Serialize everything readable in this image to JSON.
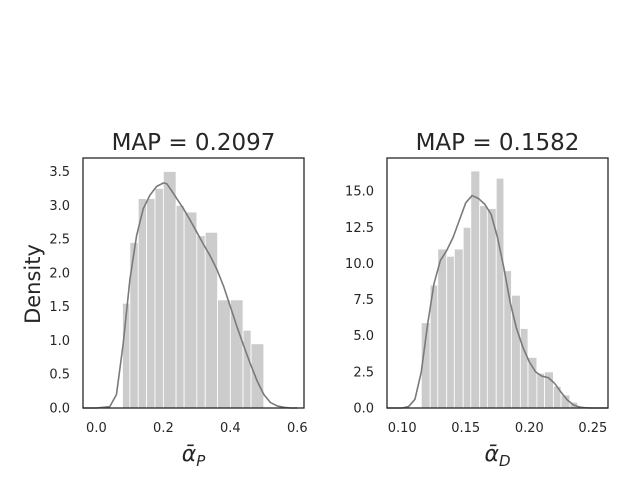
{
  "figure": {
    "ylabel": "Density"
  },
  "chart_data": [
    {
      "type": "bar",
      "title": "MAP = 0.2097",
      "xlabel": {
        "base": "ᾱ",
        "sub": "P"
      },
      "ylabel": "Density",
      "xlim": [
        -0.04,
        0.62
      ],
      "ylim": [
        0,
        3.7
      ],
      "xticks": [
        "0.0",
        "0.2",
        "0.4",
        "0.6"
      ],
      "xtick_values": [
        0.0,
        0.2,
        0.4,
        0.6
      ],
      "yticks": [
        "0.0",
        "0.5",
        "1.0",
        "1.5",
        "2.0",
        "2.5",
        "3.0",
        "3.5"
      ],
      "ytick_values": [
        0.0,
        0.5,
        1.0,
        1.5,
        2.0,
        2.5,
        3.0,
        3.5
      ],
      "bins": [
        {
          "x0": 0.078,
          "x1": 0.1,
          "value": 1.55
        },
        {
          "x0": 0.1,
          "x1": 0.125,
          "value": 2.45
        },
        {
          "x0": 0.125,
          "x1": 0.15,
          "value": 3.1
        },
        {
          "x0": 0.15,
          "x1": 0.175,
          "value": 3.1
        },
        {
          "x0": 0.175,
          "x1": 0.2,
          "value": 3.25
        },
        {
          "x0": 0.2,
          "x1": 0.238,
          "value": 3.5
        },
        {
          "x0": 0.238,
          "x1": 0.262,
          "value": 3.0
        },
        {
          "x0": 0.262,
          "x1": 0.3,
          "value": 2.9
        },
        {
          "x0": 0.3,
          "x1": 0.325,
          "value": 2.55
        },
        {
          "x0": 0.325,
          "x1": 0.362,
          "value": 2.6
        },
        {
          "x0": 0.362,
          "x1": 0.4,
          "value": 1.6
        },
        {
          "x0": 0.4,
          "x1": 0.438,
          "value": 1.6
        },
        {
          "x0": 0.438,
          "x1": 0.462,
          "value": 1.15
        },
        {
          "x0": 0.462,
          "x1": 0.5,
          "value": 0.95
        }
      ],
      "kde": {
        "x": [
          -0.04,
          0.0,
          0.04,
          0.06,
          0.08,
          0.1,
          0.12,
          0.14,
          0.16,
          0.18,
          0.2,
          0.21,
          0.22,
          0.24,
          0.26,
          0.28,
          0.3,
          0.32,
          0.34,
          0.36,
          0.38,
          0.4,
          0.42,
          0.44,
          0.46,
          0.48,
          0.5,
          0.52,
          0.54,
          0.56,
          0.58,
          0.6
        ],
        "y": [
          0.0,
          0.0,
          0.02,
          0.2,
          0.95,
          1.9,
          2.55,
          2.95,
          3.15,
          3.28,
          3.33,
          3.32,
          3.25,
          3.1,
          2.95,
          2.78,
          2.6,
          2.42,
          2.25,
          2.05,
          1.8,
          1.5,
          1.2,
          0.92,
          0.65,
          0.4,
          0.2,
          0.08,
          0.03,
          0.01,
          0.0,
          0.0
        ]
      },
      "colors": {
        "bars": "#cccccc",
        "kde": "#7a7a7a",
        "axes": "#262626"
      },
      "grid": false
    },
    {
      "type": "bar",
      "title": "MAP = 0.1582",
      "xlabel": {
        "base": "ᾱ",
        "sub": "D"
      },
      "ylabel": "",
      "xlim": [
        0.088,
        0.262
      ],
      "ylim": [
        0,
        17.3
      ],
      "xticks": [
        "0.10",
        "0.15",
        "0.20",
        "0.25"
      ],
      "xtick_values": [
        0.1,
        0.15,
        0.2,
        0.25
      ],
      "yticks": [
        "0.0",
        "2.5",
        "5.0",
        "7.5",
        "10.0",
        "12.5",
        "15.0"
      ],
      "ytick_values": [
        0.0,
        2.5,
        5.0,
        7.5,
        10.0,
        12.5,
        15.0
      ],
      "bins": [
        {
          "x0": 0.115,
          "x1": 0.122,
          "value": 5.9
        },
        {
          "x0": 0.122,
          "x1": 0.128,
          "value": 8.5
        },
        {
          "x0": 0.128,
          "x1": 0.135,
          "value": 11.0
        },
        {
          "x0": 0.135,
          "x1": 0.141,
          "value": 10.5
        },
        {
          "x0": 0.141,
          "x1": 0.148,
          "value": 11.0
        },
        {
          "x0": 0.148,
          "x1": 0.154,
          "value": 12.5
        },
        {
          "x0": 0.154,
          "x1": 0.161,
          "value": 16.4
        },
        {
          "x0": 0.161,
          "x1": 0.167,
          "value": 14.0
        },
        {
          "x0": 0.167,
          "x1": 0.174,
          "value": 13.8
        },
        {
          "x0": 0.174,
          "x1": 0.18,
          "value": 15.9
        },
        {
          "x0": 0.18,
          "x1": 0.186,
          "value": 9.5
        },
        {
          "x0": 0.186,
          "x1": 0.193,
          "value": 7.8
        },
        {
          "x0": 0.193,
          "x1": 0.199,
          "value": 5.5
        },
        {
          "x0": 0.199,
          "x1": 0.206,
          "value": 3.5
        },
        {
          "x0": 0.206,
          "x1": 0.212,
          "value": 2.4
        },
        {
          "x0": 0.212,
          "x1": 0.219,
          "value": 2.5
        },
        {
          "x0": 0.219,
          "x1": 0.225,
          "value": 1.5
        },
        {
          "x0": 0.225,
          "x1": 0.232,
          "value": 0.9
        },
        {
          "x0": 0.232,
          "x1": 0.238,
          "value": 0.4
        }
      ],
      "kde": {
        "x": [
          0.088,
          0.1,
          0.105,
          0.11,
          0.115,
          0.12,
          0.125,
          0.13,
          0.135,
          0.14,
          0.145,
          0.15,
          0.155,
          0.16,
          0.165,
          0.17,
          0.175,
          0.18,
          0.185,
          0.19,
          0.195,
          0.2,
          0.205,
          0.21,
          0.215,
          0.22,
          0.225,
          0.23,
          0.235,
          0.24,
          0.245,
          0.25,
          0.262
        ],
        "y": [
          0.0,
          0.0,
          0.1,
          0.6,
          2.5,
          5.8,
          8.6,
          10.2,
          10.9,
          11.8,
          13.0,
          14.2,
          14.7,
          14.5,
          14.1,
          13.4,
          11.8,
          9.7,
          7.3,
          5.5,
          4.2,
          3.2,
          2.5,
          2.2,
          2.1,
          1.7,
          1.1,
          0.55,
          0.2,
          0.06,
          0.01,
          0.0,
          0.0
        ]
      },
      "colors": {
        "bars": "#cccccc",
        "kde": "#7a7a7a",
        "axes": "#262626"
      },
      "grid": false
    }
  ]
}
